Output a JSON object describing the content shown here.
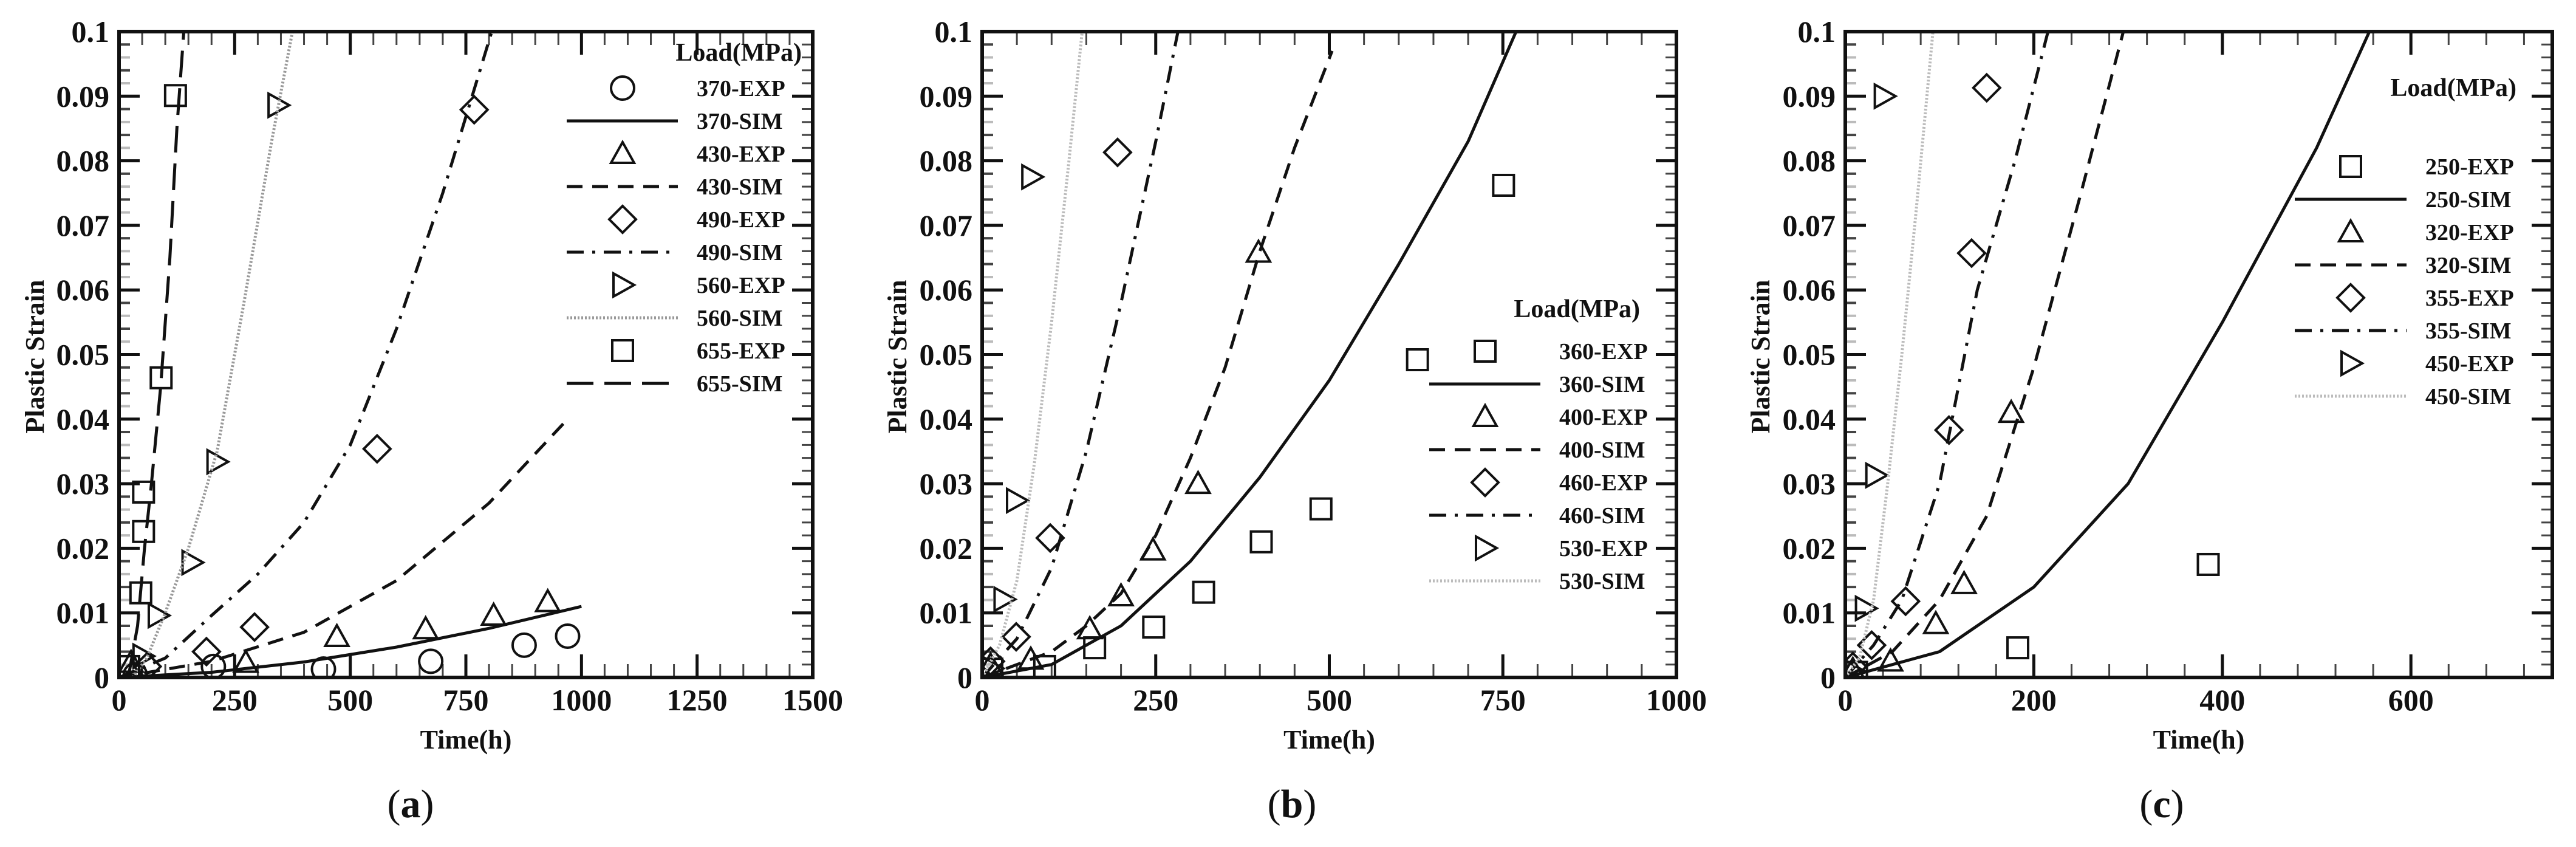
{
  "chart_data": [
    {
      "type": "scatter",
      "caption_open": "(",
      "caption_letter": "a",
      "caption_close": ")",
      "xlabel": "Time(h)",
      "ylabel": "Plastic Strain",
      "xlim": [
        0,
        1500
      ],
      "ylim": [
        0,
        0.1
      ],
      "xticks": [
        0,
        250,
        500,
        750,
        1000,
        1250,
        1500
      ],
      "yticks": [
        0,
        0.01,
        0.02,
        0.03,
        0.04,
        0.05,
        0.06,
        0.07,
        0.08,
        0.09,
        0.1
      ],
      "ytick_labels": [
        "0",
        "0.01",
        "0.02",
        "0.03",
        "0.04",
        "0.05",
        "0.06",
        "0.07",
        "0.08",
        "0.09",
        "0.1"
      ],
      "legend_title": "Load(MPa)",
      "legend_position": "top-right",
      "series": [
        {
          "name": "370-EXP",
          "kind": "exp",
          "marker": "circle",
          "points": [
            [
              35,
              0.0004
            ],
            [
              204,
              0.0017
            ],
            [
              442,
              0.0013
            ],
            [
              674,
              0.0025
            ],
            [
              876,
              0.005
            ],
            [
              970,
              0.0064
            ]
          ]
        },
        {
          "name": "370-SIM",
          "kind": "sim",
          "line": "solid",
          "color": "#111111",
          "points": [
            [
              0,
              0
            ],
            [
              200,
              0.0008
            ],
            [
              400,
              0.0024
            ],
            [
              600,
              0.0047
            ],
            [
              800,
              0.0076
            ],
            [
              1000,
              0.011
            ]
          ]
        },
        {
          "name": "430-EXP",
          "kind": "exp",
          "marker": "triangle-up",
          "points": [
            [
              26,
              0.0023
            ],
            [
              274,
              0.0023
            ],
            [
              471,
              0.0063
            ],
            [
              663,
              0.0075
            ],
            [
              810,
              0.0096
            ],
            [
              927,
              0.0117
            ]
          ]
        },
        {
          "name": "430-SIM",
          "kind": "sim",
          "line": "dashed",
          "color": "#111111",
          "points": [
            [
              0,
              0
            ],
            [
              200,
              0.0025
            ],
            [
              400,
              0.007
            ],
            [
              600,
              0.015
            ],
            [
              800,
              0.027
            ],
            [
              970,
              0.04
            ]
          ]
        },
        {
          "name": "490-EXP",
          "kind": "exp",
          "marker": "diamond",
          "points": [
            [
              61,
              0.0017
            ],
            [
              189,
              0.004
            ],
            [
              293,
              0.0078
            ],
            [
              558,
              0.0354
            ],
            [
              768,
              0.0879
            ]
          ]
        },
        {
          "name": "490-SIM",
          "kind": "sim",
          "line": "dash-dot",
          "color": "#111111",
          "points": [
            [
              0,
              0
            ],
            [
              100,
              0.003
            ],
            [
              200,
              0.0096
            ],
            [
              300,
              0.016
            ],
            [
              400,
              0.024
            ],
            [
              500,
              0.036
            ],
            [
              600,
              0.054
            ],
            [
              700,
              0.075
            ],
            [
              806,
              0.1
            ]
          ]
        },
        {
          "name": "560-EXP",
          "kind": "exp",
          "marker": "triangle-right",
          "points": [
            [
              51,
              0.0033
            ],
            [
              84,
              0.0096
            ],
            [
              157,
              0.0178
            ],
            [
              211,
              0.0334
            ],
            [
              343,
              0.0886
            ]
          ]
        },
        {
          "name": "560-SIM",
          "kind": "sim",
          "line": "dotted",
          "color": "#999999",
          "points": [
            [
              30,
              0
            ],
            [
              60,
              0.003
            ],
            [
              100,
              0.01
            ],
            [
              150,
              0.02
            ],
            [
              212,
              0.035
            ],
            [
              270,
              0.058
            ],
            [
              330,
              0.083
            ],
            [
              375,
              0.1
            ]
          ]
        },
        {
          "name": "655-EXP",
          "kind": "exp",
          "marker": "square",
          "points": [
            [
              21,
              0.0017
            ],
            [
              47,
              0.0131
            ],
            [
              53,
              0.0226
            ],
            [
              53,
              0.0287
            ],
            [
              91,
              0.0464
            ],
            [
              122,
              0.0901
            ]
          ]
        },
        {
          "name": "655-SIM",
          "kind": "sim",
          "line": "long-dash",
          "color": "#111111",
          "points": [
            [
              20,
              0
            ],
            [
              40,
              0.008
            ],
            [
              55,
              0.02
            ],
            [
              70,
              0.03
            ],
            [
              90,
              0.045
            ],
            [
              110,
              0.065
            ],
            [
              125,
              0.085
            ],
            [
              140,
              0.1
            ]
          ]
        }
      ]
    },
    {
      "type": "scatter",
      "caption_open": "(",
      "caption_letter": "b",
      "caption_close": ")",
      "xlabel": "Time(h)",
      "ylabel": "Plastic Strain",
      "xlim": [
        0,
        1000
      ],
      "ylim": [
        0,
        0.1
      ],
      "xticks": [
        0,
        250,
        500,
        750,
        1000
      ],
      "yticks": [
        0,
        0.01,
        0.02,
        0.03,
        0.04,
        0.05,
        0.06,
        0.07,
        0.08,
        0.09,
        0.1
      ],
      "ytick_labels": [
        "0",
        "0.01",
        "0.02",
        "0.03",
        "0.04",
        "0.05",
        "0.06",
        "0.07",
        "0.08",
        "0.09",
        "0.1"
      ],
      "legend_title": "Load(MPa)",
      "legend_position": "right",
      "series": [
        {
          "name": "360-EXP",
          "kind": "exp",
          "marker": "square",
          "points": [
            [
              14,
              0.0013
            ],
            [
              90,
              0.0017
            ],
            [
              162,
              0.0046
            ],
            [
              247,
              0.0078
            ],
            [
              319,
              0.0132
            ],
            [
              402,
              0.021
            ],
            [
              488,
              0.0261
            ],
            [
              627,
              0.0492
            ],
            [
              751,
              0.0762
            ]
          ]
        },
        {
          "name": "360-SIM",
          "kind": "sim",
          "line": "solid",
          "color": "#111111",
          "points": [
            [
              0,
              0
            ],
            [
              100,
              0.002
            ],
            [
              200,
              0.008
            ],
            [
              300,
              0.018
            ],
            [
              400,
              0.031
            ],
            [
              500,
              0.046
            ],
            [
              600,
              0.064
            ],
            [
              700,
              0.083
            ],
            [
              769,
              0.1
            ]
          ]
        },
        {
          "name": "400-EXP",
          "kind": "exp",
          "marker": "triangle-up",
          "points": [
            [
              12,
              0.0019
            ],
            [
              70,
              0.0028
            ],
            [
              155,
              0.0075
            ],
            [
              200,
              0.0126
            ],
            [
              246,
              0.0197
            ],
            [
              311,
              0.03
            ],
            [
              398,
              0.0658
            ]
          ]
        },
        {
          "name": "400-SIM",
          "kind": "sim",
          "line": "dashed",
          "color": "#111111",
          "points": [
            [
              0,
              0
            ],
            [
              100,
              0.004
            ],
            [
              150,
              0.008
            ],
            [
              200,
              0.013
            ],
            [
              250,
              0.022
            ],
            [
              300,
              0.034
            ],
            [
              350,
              0.048
            ],
            [
              400,
              0.066
            ],
            [
              450,
              0.082
            ],
            [
              504,
              0.097
            ]
          ]
        },
        {
          "name": "460-EXP",
          "kind": "exp",
          "marker": "diamond",
          "points": [
            [
              12,
              0.0025
            ],
            [
              49,
              0.0063
            ],
            [
              98,
              0.0216
            ],
            [
              195,
              0.0813
            ]
          ]
        },
        {
          "name": "460-SIM",
          "kind": "sim",
          "line": "dash-dot",
          "color": "#111111",
          "points": [
            [
              0,
              0
            ],
            [
              50,
              0.006
            ],
            [
              100,
              0.017
            ],
            [
              150,
              0.035
            ],
            [
              200,
              0.058
            ],
            [
              250,
              0.083
            ],
            [
              282,
              0.1
            ]
          ]
        },
        {
          "name": "530-EXP",
          "kind": "exp",
          "marker": "triangle-right",
          "points": [
            [
              14,
              0.0014
            ],
            [
              31,
              0.0121
            ],
            [
              49,
              0.0274
            ],
            [
              71,
              0.0775
            ]
          ]
        },
        {
          "name": "530-SIM",
          "kind": "sim",
          "line": "dotted",
          "color": "#bbbbbb",
          "points": [
            [
              0,
              0
            ],
            [
              25,
              0.005
            ],
            [
              50,
              0.015
            ],
            [
              75,
              0.033
            ],
            [
              100,
              0.055
            ],
            [
              125,
              0.08
            ],
            [
              144,
              0.1
            ]
          ]
        }
      ]
    },
    {
      "type": "scatter",
      "caption_open": "(",
      "caption_letter": "c",
      "caption_close": ")",
      "xlabel": "Time(h)",
      "ylabel": "Plastic Strain",
      "xlim": [
        0,
        750
      ],
      "ylim": [
        0,
        0.1
      ],
      "xticks": [
        0,
        200,
        400,
        600
      ],
      "yticks": [
        0,
        0.01,
        0.02,
        0.03,
        0.04,
        0.05,
        0.06,
        0.07,
        0.08,
        0.09,
        0.1
      ],
      "ytick_labels": [
        "0",
        "0.01",
        "0.02",
        "0.03",
        "0.04",
        "0.05",
        "0.06",
        "0.07",
        "0.08",
        "0.09",
        "0.1"
      ],
      "legend_title": "Load(MPa)",
      "legend_position": "top-right",
      "series": [
        {
          "name": "250-EXP",
          "kind": "exp",
          "marker": "square",
          "points": [
            [
              12,
              0.0008
            ],
            [
              183,
              0.0046
            ],
            [
              385,
              0.0175
            ]
          ]
        },
        {
          "name": "250-SIM",
          "kind": "sim",
          "line": "solid",
          "color": "#111111",
          "points": [
            [
              0,
              0
            ],
            [
              100,
              0.004
            ],
            [
              200,
              0.014
            ],
            [
              300,
              0.03
            ],
            [
              400,
              0.055
            ],
            [
              500,
              0.082
            ],
            [
              556,
              0.1
            ]
          ]
        },
        {
          "name": "320-EXP",
          "kind": "exp",
          "marker": "triangle-up",
          "points": [
            [
              8,
              0.0012
            ],
            [
              48,
              0.0025
            ],
            [
              96,
              0.0083
            ],
            [
              126,
              0.0145
            ],
            [
              176,
              0.041
            ]
          ]
        },
        {
          "name": "320-SIM",
          "kind": "sim",
          "line": "dashed",
          "color": "#111111",
          "points": [
            [
              0,
              0
            ],
            [
              50,
              0.004
            ],
            [
              100,
              0.012
            ],
            [
              150,
              0.025
            ],
            [
              200,
              0.048
            ],
            [
              250,
              0.075
            ],
            [
              295,
              0.1
            ]
          ]
        },
        {
          "name": "355-EXP",
          "kind": "exp",
          "marker": "diamond",
          "points": [
            [
              8,
              0.0017
            ],
            [
              28,
              0.005
            ],
            [
              64,
              0.0118
            ],
            [
              110,
              0.0383
            ],
            [
              134,
              0.0657
            ],
            [
              150,
              0.0913
            ]
          ]
        },
        {
          "name": "355-SIM",
          "kind": "sim",
          "line": "dash-dot",
          "color": "#111111",
          "points": [
            [
              0,
              0
            ],
            [
              30,
              0.005
            ],
            [
              60,
              0.012
            ],
            [
              100,
              0.03
            ],
            [
              140,
              0.06
            ],
            [
              180,
              0.08
            ],
            [
              215,
              0.1
            ]
          ]
        },
        {
          "name": "450-EXP",
          "kind": "exp",
          "marker": "triangle-right",
          "points": [
            [
              8,
              0.001
            ],
            [
              21,
              0.0107
            ],
            [
              32,
              0.0313
            ],
            [
              41,
              0.09
            ]
          ]
        },
        {
          "name": "450-SIM",
          "kind": "sim",
          "line": "dotted",
          "color": "#bbbbbb",
          "points": [
            [
              0,
              0
            ],
            [
              15,
              0.003
            ],
            [
              30,
              0.012
            ],
            [
              45,
              0.03
            ],
            [
              60,
              0.05
            ],
            [
              75,
              0.072
            ],
            [
              93,
              0.1
            ]
          ]
        }
      ]
    }
  ]
}
